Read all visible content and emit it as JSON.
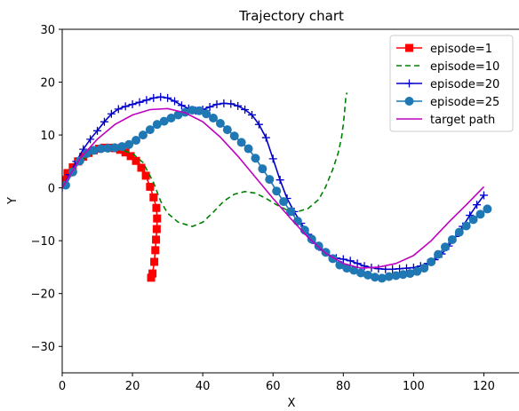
{
  "chart_data": {
    "type": "line",
    "title": "Trajectory chart",
    "xlabel": "X",
    "ylabel": "Y",
    "xlim": [
      0,
      130
    ],
    "ylim": [
      -35,
      30
    ],
    "xticks": [
      0,
      20,
      40,
      60,
      80,
      100,
      120
    ],
    "yticks": [
      30,
      20,
      10,
      0,
      -10,
      -20,
      -30
    ],
    "grid": false,
    "legend_position": "top-right",
    "series": [
      {
        "name": "episode=1",
        "color": "#ff0000",
        "line_style": "solid",
        "marker": "square",
        "x": [
          0.3,
          1.5,
          3,
          4.5,
          6,
          7.5,
          9,
          10.5,
          12,
          13.5,
          15,
          16.5,
          18,
          19.5,
          21,
          22.5,
          23.8,
          25,
          26,
          26.8,
          27,
          26.9,
          26.7,
          26.5,
          26.2,
          25.7,
          25.3
        ],
        "y": [
          1.5,
          2.8,
          3.9,
          5.0,
          5.9,
          6.6,
          7.1,
          7.4,
          7.6,
          7.6,
          7.5,
          7.2,
          6.7,
          6.0,
          5.1,
          3.8,
          2.3,
          0.2,
          -1.8,
          -3.8,
          -5.8,
          -7.8,
          -9.8,
          -11.8,
          -14.0,
          -16.2,
          -17.0
        ]
      },
      {
        "name": "episode=10",
        "color": "#008000",
        "line_style": "dashed",
        "marker": "none",
        "x": [
          0,
          5,
          10,
          15,
          20,
          23,
          26,
          28,
          30,
          33,
          37,
          40,
          43,
          46,
          49,
          52,
          55,
          58,
          61,
          64,
          67,
          70,
          73,
          75,
          77,
          78.5,
          79.5,
          80,
          80.3,
          80.5,
          80.7,
          81
        ],
        "y": [
          0,
          5,
          7.2,
          7.5,
          6.5,
          4.8,
          1.0,
          -2.5,
          -4.8,
          -6.5,
          -7.3,
          -6.5,
          -4.6,
          -2.5,
          -1.2,
          -0.7,
          -1.0,
          -2.0,
          -3.2,
          -4.2,
          -4.5,
          -3.9,
          -2.2,
          0.2,
          3.5,
          6.5,
          9.5,
          12,
          14,
          15.5,
          17,
          18
        ]
      },
      {
        "name": "episode=20",
        "color": "#0000cc",
        "line_style": "solid",
        "marker": "plus",
        "x": [
          0,
          2,
          4,
          6,
          8,
          10,
          12,
          14,
          16,
          18,
          20,
          22,
          24,
          26,
          28,
          30,
          32,
          34,
          36,
          38,
          40,
          42,
          44,
          46,
          48,
          50,
          52,
          54,
          56,
          58,
          60,
          62,
          64,
          66,
          68,
          70,
          72,
          74,
          76,
          78,
          80,
          82,
          84,
          86,
          88,
          90,
          92,
          94,
          96,
          98,
          100,
          102,
          104,
          106,
          108,
          110,
          112,
          114,
          116,
          118,
          120
        ],
        "y": [
          0,
          2.5,
          5,
          7.3,
          9.2,
          10.8,
          12.5,
          14.0,
          14.9,
          15.4,
          15.8,
          16.2,
          16.6,
          17.0,
          17.2,
          17.0,
          16.4,
          15.6,
          15.0,
          14.6,
          14.8,
          15.3,
          15.8,
          16.0,
          15.9,
          15.5,
          14.8,
          13.8,
          12.0,
          9.5,
          5.5,
          1.5,
          -2.0,
          -4.5,
          -6.7,
          -8.8,
          -10.5,
          -11.8,
          -12.8,
          -13.3,
          -13.5,
          -13.8,
          -14.3,
          -14.8,
          -15.1,
          -15.3,
          -15.4,
          -15.4,
          -15.3,
          -15.2,
          -15.1,
          -14.8,
          -14.3,
          -13.6,
          -12.5,
          -11.0,
          -9.2,
          -7.3,
          -5.2,
          -3.2,
          -1.4
        ]
      },
      {
        "name": "episode=25",
        "color": "#1f77b4",
        "line_style": "solid",
        "marker": "circle",
        "x": [
          1,
          3,
          5,
          7,
          9,
          11,
          13,
          15,
          17,
          19,
          21,
          23,
          25,
          27,
          29,
          31,
          33,
          35,
          37,
          39,
          41,
          43,
          45,
          47,
          49,
          51,
          53,
          55,
          57,
          59,
          61,
          63,
          65,
          67,
          69,
          71,
          73,
          75,
          77,
          79,
          81,
          83,
          85,
          87,
          89,
          91,
          93,
          95,
          97,
          99,
          101,
          103,
          105,
          107,
          109,
          111,
          113,
          115,
          117,
          119,
          121
        ],
        "y": [
          0.5,
          3.0,
          5.1,
          6.5,
          7.1,
          7.4,
          7.5,
          7.6,
          7.8,
          8.2,
          9.0,
          10.0,
          11.0,
          12.0,
          12.6,
          13.2,
          13.8,
          14.3,
          14.7,
          14.6,
          14.0,
          13.2,
          12.2,
          11.0,
          9.8,
          8.6,
          7.4,
          5.6,
          3.6,
          1.6,
          -0.6,
          -2.6,
          -4.5,
          -6.3,
          -8.0,
          -9.7,
          -11.0,
          -12.2,
          -13.4,
          -14.6,
          -15.2,
          -15.6,
          -16.1,
          -16.5,
          -16.9,
          -17.1,
          -16.8,
          -16.6,
          -16.4,
          -16.2,
          -15.8,
          -15.2,
          -14.0,
          -12.6,
          -11.2,
          -9.8,
          -8.4,
          -7.2,
          -6.0,
          -5.0,
          -4.0
        ]
      },
      {
        "name": "target path",
        "color": "#bf00bf",
        "line_style": "solid",
        "marker": "none",
        "x": [
          0,
          5,
          10,
          15,
          20,
          25,
          30,
          35,
          40,
          45,
          50,
          55,
          60,
          65,
          70,
          75,
          80,
          85,
          90,
          95,
          100,
          105,
          110,
          115,
          120
        ],
        "y": [
          0,
          5.5,
          9.2,
          12.0,
          13.8,
          14.8,
          15.0,
          14.2,
          12.5,
          9.6,
          6.0,
          2.0,
          -2.0,
          -5.8,
          -9.4,
          -12.4,
          -14.3,
          -15.2,
          -15.0,
          -14.3,
          -12.8,
          -10.0,
          -6.5,
          -3.2,
          0.2
        ]
      }
    ]
  }
}
